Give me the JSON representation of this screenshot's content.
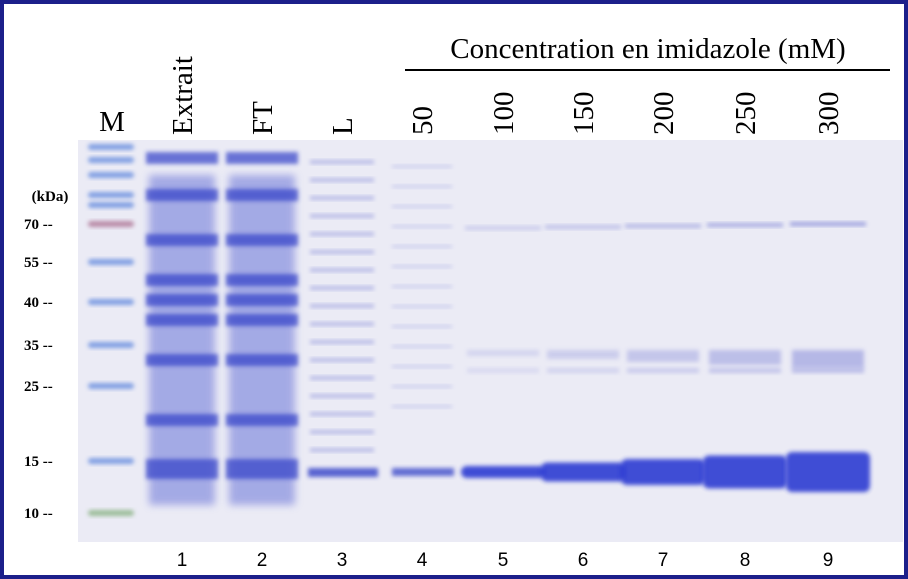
{
  "header": {
    "title": "Concentration en imidazole (mM)",
    "marker_lane": "M",
    "lanes": [
      "Extrait",
      "FT",
      "L",
      "50",
      "100",
      "150",
      "200",
      "250",
      "300"
    ]
  },
  "size_markers": {
    "unit": "(kDa)",
    "labels": [
      "70 --",
      "55 --",
      "40 --",
      "35 --",
      "25 --",
      "15 --",
      "10 --"
    ]
  },
  "lane_numbers": [
    1,
    2,
    3,
    4,
    5,
    6,
    7,
    8,
    9
  ]
}
